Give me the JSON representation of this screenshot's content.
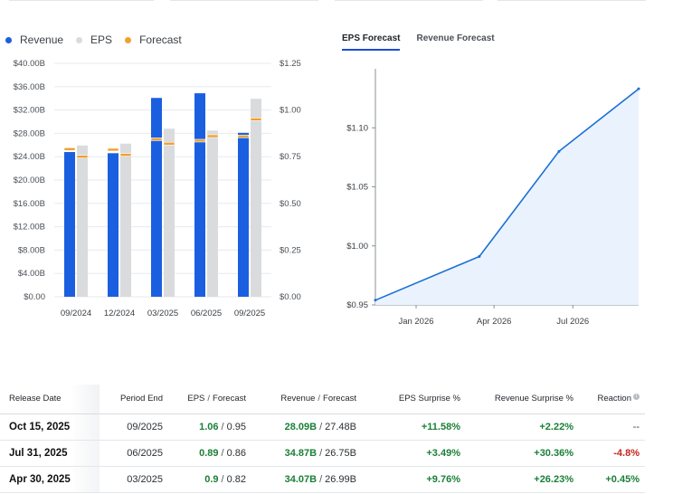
{
  "legend": [
    {
      "label": "Revenue",
      "color": "#1a5fe0"
    },
    {
      "label": "EPS",
      "color": "#d9dbdd"
    },
    {
      "label": "Forecast",
      "color": "#f0a030"
    }
  ],
  "tabs": [
    {
      "label": "EPS Forecast",
      "active": true
    },
    {
      "label": "Revenue Forecast",
      "active": false
    }
  ],
  "chart_data": [
    {
      "type": "bar",
      "categories": [
        "09/2024",
        "12/2024",
        "03/2025",
        "06/2025",
        "09/2025"
      ],
      "left_axis": {
        "ticks": [
          "$0.00",
          "$4.00B",
          "$8.00B",
          "$12.00B",
          "$16.00B",
          "$20.00B",
          "$24.00B",
          "$28.00B",
          "$32.00B",
          "$36.00B",
          "$40.00B"
        ],
        "range": [
          0,
          40
        ]
      },
      "right_axis": {
        "ticks": [
          "$0.00",
          "$0.25",
          "$0.50",
          "$0.75",
          "$1.00",
          "$1.25"
        ],
        "range": [
          0,
          1.25
        ]
      },
      "series": [
        {
          "name": "Revenue",
          "color": "#1a5fe0",
          "values": [
            24.8,
            24.6,
            34.07,
            34.87,
            28.09
          ],
          "forecast": [
            25.3,
            25.2,
            26.99,
            26.75,
            27.48
          ]
        },
        {
          "name": "EPS",
          "color": "#d9dbdd",
          "values": [
            0.81,
            0.82,
            0.9,
            0.89,
            1.06
          ],
          "forecast": [
            0.75,
            0.76,
            0.82,
            0.86,
            0.95
          ]
        }
      ],
      "forecast_color": "#f0a030",
      "grid": true
    },
    {
      "type": "area",
      "x_ticks": [
        "Jan 2026",
        "Apr 2026",
        "Jul 2026"
      ],
      "y_ticks": [
        "$0.95",
        "$1.00",
        "$1.05",
        "$1.10"
      ],
      "x": [
        "2025-11-15",
        "2026-03-15",
        "2026-06-15",
        "2026-09-15"
      ],
      "y": [
        0.954,
        0.991,
        1.08,
        1.133
      ],
      "x_range": [
        "2025-11-15",
        "2026-09-15"
      ],
      "ylim": [
        0.95,
        1.15
      ],
      "line_color": "#1a6fd6",
      "fill_color": "#eaf3fd"
    }
  ],
  "table": {
    "headers": {
      "release_date": "Release Date",
      "period_end": "Period End",
      "eps": "EPS",
      "eps_forecast": "Forecast",
      "revenue": "Revenue",
      "revenue_forecast": "Forecast",
      "eps_surprise": "EPS Surprise %",
      "revenue_surprise": "Revenue Surprise %",
      "reaction": "Reaction"
    },
    "rows": [
      {
        "release_date": "Oct 15, 2025",
        "period_end": "09/2025",
        "eps": "1.06",
        "eps_forecast": "0.95",
        "revenue": "28.09B",
        "revenue_forecast": "27.48B",
        "eps_surprise": "+11.58%",
        "revenue_surprise": "+2.22%",
        "reaction": "--",
        "reaction_tone": "muted"
      },
      {
        "release_date": "Jul 31, 2025",
        "period_end": "06/2025",
        "eps": "0.89",
        "eps_forecast": "0.86",
        "revenue": "34.87B",
        "revenue_forecast": "26.75B",
        "eps_surprise": "+3.49%",
        "revenue_surprise": "+30.36%",
        "reaction": "-4.8%",
        "reaction_tone": "neg"
      },
      {
        "release_date": "Apr 30, 2025",
        "period_end": "03/2025",
        "eps": "0.9",
        "eps_forecast": "0.82",
        "revenue": "34.07B",
        "revenue_forecast": "26.99B",
        "eps_surprise": "+9.76%",
        "revenue_surprise": "+26.23%",
        "reaction": "+0.45%",
        "reaction_tone": "pos"
      }
    ]
  }
}
